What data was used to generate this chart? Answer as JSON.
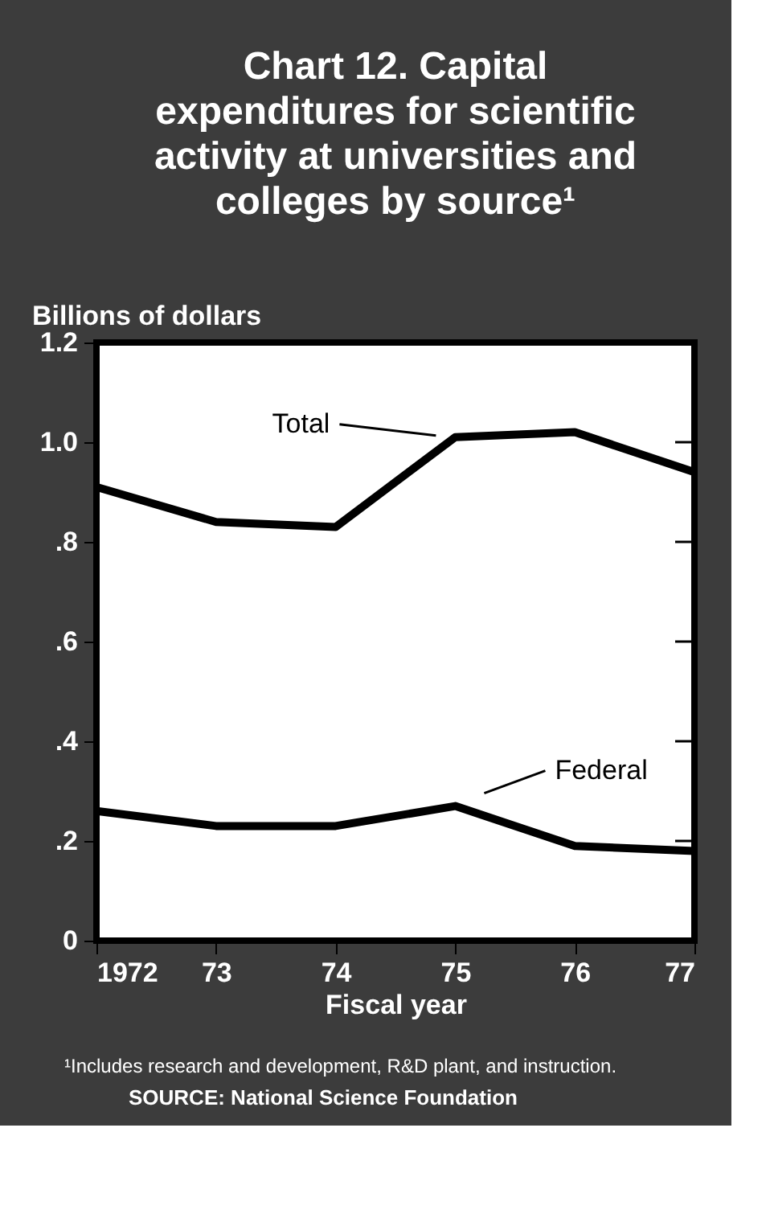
{
  "chart_data": {
    "type": "line",
    "title": [
      "Chart 12. Capital",
      "expenditures for scientific",
      "activity at universities and",
      "colleges by source¹"
    ],
    "ylabel": "Billions of dollars",
    "xlabel": "Fiscal year",
    "x": [
      1972,
      1973,
      1974,
      1975,
      1976,
      1977
    ],
    "xlim": [
      1972,
      1977
    ],
    "xticks": [
      {
        "value": 1972,
        "label": "1972"
      },
      {
        "value": 1973,
        "label": "73"
      },
      {
        "value": 1974,
        "label": "74"
      },
      {
        "value": 1975,
        "label": "75"
      },
      {
        "value": 1976,
        "label": "76"
      },
      {
        "value": 1977,
        "label": "77"
      }
    ],
    "ylim": [
      0,
      1.2
    ],
    "yticks": [
      {
        "value": 0,
        "label": "0"
      },
      {
        "value": 0.2,
        "label": ".2"
      },
      {
        "value": 0.4,
        "label": ".4"
      },
      {
        "value": 0.6,
        "label": ".6"
      },
      {
        "value": 0.8,
        "label": ".8"
      },
      {
        "value": 1.0,
        "label": "1.0"
      },
      {
        "value": 1.2,
        "label": "1.2"
      }
    ],
    "series": [
      {
        "name": "Total",
        "color": "#000000",
        "values": [
          0.91,
          0.84,
          0.83,
          1.01,
          1.02,
          0.94
        ]
      },
      {
        "name": "Federal",
        "color": "#000000",
        "values": [
          0.26,
          0.23,
          0.23,
          0.27,
          0.19,
          0.18
        ]
      }
    ],
    "annotations": [
      "¹Includes research and development, R&D plant, and instruction.",
      "SOURCE: National Science Foundation"
    ],
    "grid": false,
    "marker": "none",
    "line_style": "solid"
  }
}
